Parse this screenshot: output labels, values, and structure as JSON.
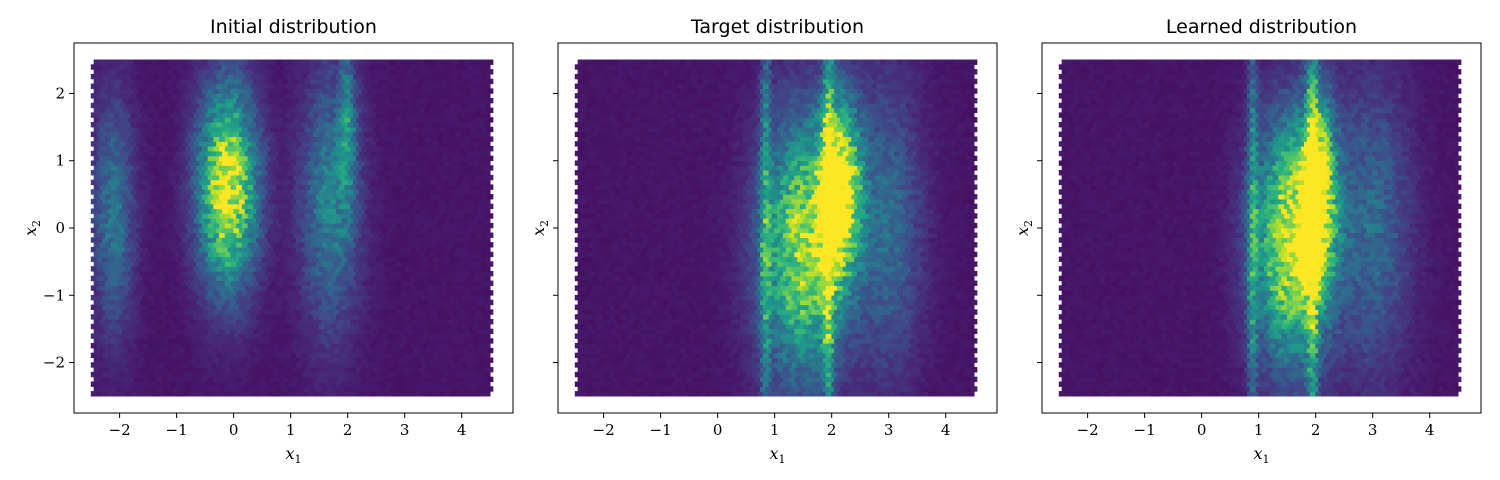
{
  "chart_data": [
    {
      "type": "heatmap",
      "subtype": "hexbin",
      "title": "Initial distribution",
      "xlabel": "x_1",
      "ylabel": "x_2",
      "xlim": [
        -2.8,
        4.9
      ],
      "ylim": [
        -2.75,
        2.75
      ],
      "x_ticks": [
        -2,
        -1,
        0,
        1,
        2,
        3,
        4
      ],
      "y_ticks": [
        -2,
        -1,
        0,
        1,
        2
      ],
      "y_tick_labels_shown": true,
      "data_extent": {
        "x": [
          -2.5,
          4.5
        ],
        "y": [
          -2.5,
          2.5
        ]
      },
      "colormap": "viridis",
      "bands": [
        {
          "x_center": -0.1,
          "width": 0.35,
          "y_center": 0.6,
          "y_spread": 1.0,
          "intensity": 1.0
        },
        {
          "x_center": -2.1,
          "width": 0.25,
          "y_center": 0.2,
          "y_spread": 1.2,
          "intensity": 0.35
        },
        {
          "x_center": 1.7,
          "width": 0.35,
          "y_center": 0.4,
          "y_spread": 1.3,
          "intensity": 0.4
        },
        {
          "x_center": 2.0,
          "width": 0.1,
          "y_center": 1.5,
          "y_spread": 0.8,
          "intensity": 0.35
        }
      ]
    },
    {
      "type": "heatmap",
      "subtype": "hexbin",
      "title": "Target distribution",
      "xlabel": "x_1",
      "ylabel": "x_2",
      "xlim": [
        -2.8,
        4.9
      ],
      "ylim": [
        -2.75,
        2.75
      ],
      "x_ticks": [
        -2,
        -1,
        0,
        1,
        2,
        3,
        4
      ],
      "y_ticks": [
        -2,
        -1,
        0,
        1,
        2
      ],
      "y_tick_labels_shown": false,
      "data_extent": {
        "x": [
          -2.5,
          4.5
        ],
        "y": [
          -2.5,
          2.5
        ]
      },
      "colormap": "viridis",
      "bands": [
        {
          "x_center": 1.5,
          "width": 0.5,
          "y_center": -0.3,
          "y_spread": 1.3,
          "intensity": 0.85
        },
        {
          "x_center": 2.15,
          "width": 0.25,
          "y_center": 0.6,
          "y_spread": 0.9,
          "intensity": 1.0
        },
        {
          "x_center": 1.95,
          "width": 0.06,
          "y_center": 0.0,
          "y_spread": 2.5,
          "intensity": 0.55
        },
        {
          "x_center": 0.85,
          "width": 0.06,
          "y_center": 0.0,
          "y_spread": 2.5,
          "intensity": 0.4
        },
        {
          "x_center": 3.0,
          "width": 0.4,
          "y_center": 0.0,
          "y_spread": 1.5,
          "intensity": 0.3
        }
      ]
    },
    {
      "type": "heatmap",
      "subtype": "hexbin",
      "title": "Learned distribution",
      "xlabel": "x_1",
      "ylabel": "x_2",
      "xlim": [
        -2.8,
        4.9
      ],
      "ylim": [
        -2.75,
        2.75
      ],
      "x_ticks": [
        -2,
        -1,
        0,
        1,
        2,
        3,
        4
      ],
      "y_ticks": [
        -2,
        -1,
        0,
        1,
        2
      ],
      "y_tick_labels_shown": false,
      "data_extent": {
        "x": [
          -2.5,
          4.5
        ],
        "y": [
          -2.5,
          2.5
        ]
      },
      "colormap": "viridis",
      "bands": [
        {
          "x_center": 1.6,
          "width": 0.45,
          "y_center": -0.2,
          "y_spread": 1.2,
          "intensity": 1.0
        },
        {
          "x_center": 2.05,
          "width": 0.2,
          "y_center": 0.6,
          "y_spread": 0.9,
          "intensity": 0.85
        },
        {
          "x_center": 1.95,
          "width": 0.06,
          "y_center": 0.0,
          "y_spread": 2.5,
          "intensity": 0.55
        },
        {
          "x_center": 0.9,
          "width": 0.06,
          "y_center": 0.0,
          "y_spread": 2.5,
          "intensity": 0.4
        },
        {
          "x_center": 3.0,
          "width": 0.45,
          "y_center": 0.0,
          "y_spread": 1.5,
          "intensity": 0.3
        }
      ]
    }
  ],
  "colors": {
    "viridis": [
      "#440154",
      "#482475",
      "#414487",
      "#355f8d",
      "#2a788e",
      "#21918c",
      "#22a884",
      "#44bf70",
      "#7ad151",
      "#bddf26",
      "#fde725"
    ],
    "frame": "#000000",
    "background": "#ffffff"
  }
}
